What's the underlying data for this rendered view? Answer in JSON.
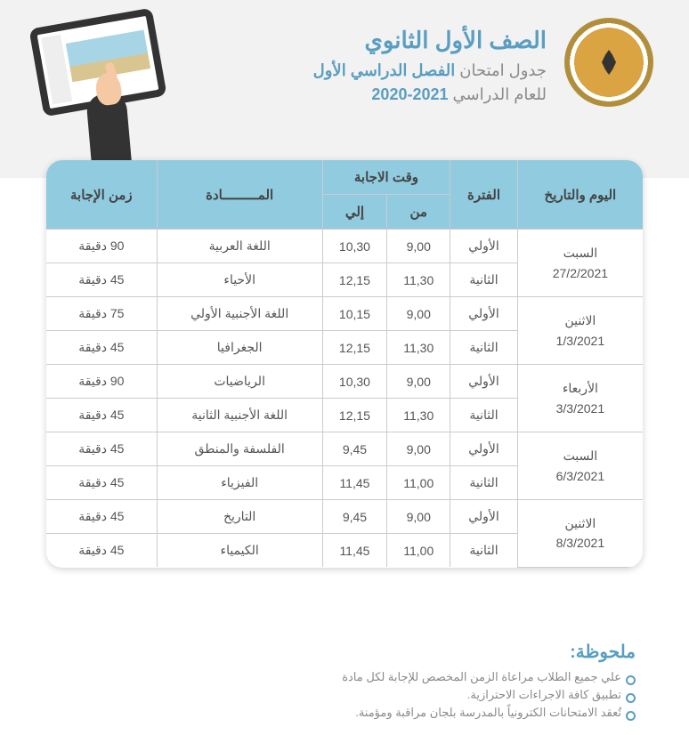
{
  "header": {
    "grade": "الصف الأول الثانوي",
    "line2_pre": "جدول امتحان ",
    "line2_hl": "الفصل الدراسي الأول",
    "line3_pre": "للعام الدراسي ",
    "line3_hl": "2021-2020"
  },
  "table": {
    "headers": {
      "day_date": "اليوم والتاريخ",
      "period": "الفترة",
      "answer_time": "وقت الاجابة",
      "from": "من",
      "to": "إلي",
      "subject": "المـــــــــادة",
      "duration": "زمن الإجابة"
    },
    "days": [
      {
        "day": "السبت",
        "date": "27/2/2021",
        "rows": [
          {
            "period": "الأولي",
            "from": "9,00",
            "to": "10,30",
            "subject": "اللغة العربية",
            "duration": "90 دقيقة"
          },
          {
            "period": "الثانية",
            "from": "11,30",
            "to": "12,15",
            "subject": "الأحياء",
            "duration": "45 دقيقة"
          }
        ]
      },
      {
        "day": "الاثنين",
        "date": "1/3/2021",
        "rows": [
          {
            "period": "الأولي",
            "from": "9,00",
            "to": "10,15",
            "subject": "اللغة الأجنبية الأولي",
            "duration": "75 دقيقة"
          },
          {
            "period": "الثانية",
            "from": "11,30",
            "to": "12,15",
            "subject": "الجغرافيا",
            "duration": "45 دقيقة"
          }
        ]
      },
      {
        "day": "الأربعاء",
        "date": "3/3/2021",
        "rows": [
          {
            "period": "الأولي",
            "from": "9,00",
            "to": "10,30",
            "subject": "الرياضيات",
            "duration": "90 دقيقة"
          },
          {
            "period": "الثانية",
            "from": "11,30",
            "to": "12,15",
            "subject": "اللغة الأجنبية الثانية",
            "duration": "45 دقيقة"
          }
        ]
      },
      {
        "day": "السبت",
        "date": "6/3/2021",
        "rows": [
          {
            "period": "الأولي",
            "from": "9,00",
            "to": "9,45",
            "subject": "الفلسفة والمنطق",
            "duration": "45 دقيقة"
          },
          {
            "period": "الثانية",
            "from": "11,00",
            "to": "11,45",
            "subject": "الفيزياء",
            "duration": "45 دقيقة"
          }
        ]
      },
      {
        "day": "الاثنين",
        "date": "8/3/2021",
        "rows": [
          {
            "period": "الأولي",
            "from": "9,00",
            "to": "9,45",
            "subject": "التاريخ",
            "duration": "45 دقيقة"
          },
          {
            "period": "الثانية",
            "from": "11,00",
            "to": "11,45",
            "subject": "الكيمياء",
            "duration": "45 دقيقة"
          }
        ]
      }
    ]
  },
  "notes": {
    "title": "ملحوظة:",
    "items": [
      "علي جميع الطلاب مراعاة الزمن المخصص للإجابة لكل مادة",
      "تطبيق كافة الاجراءات الاحترازية.",
      "تُعقد الامتحانات الكترونياً بالمدرسة بلجان مراقبة ومؤمنة."
    ]
  },
  "colors": {
    "accent": "#599ec2",
    "header_bg": "#f2f2f2",
    "th_bg": "#90cbe0",
    "text_gray": "#8a8a8a",
    "border": "#cccccc"
  }
}
